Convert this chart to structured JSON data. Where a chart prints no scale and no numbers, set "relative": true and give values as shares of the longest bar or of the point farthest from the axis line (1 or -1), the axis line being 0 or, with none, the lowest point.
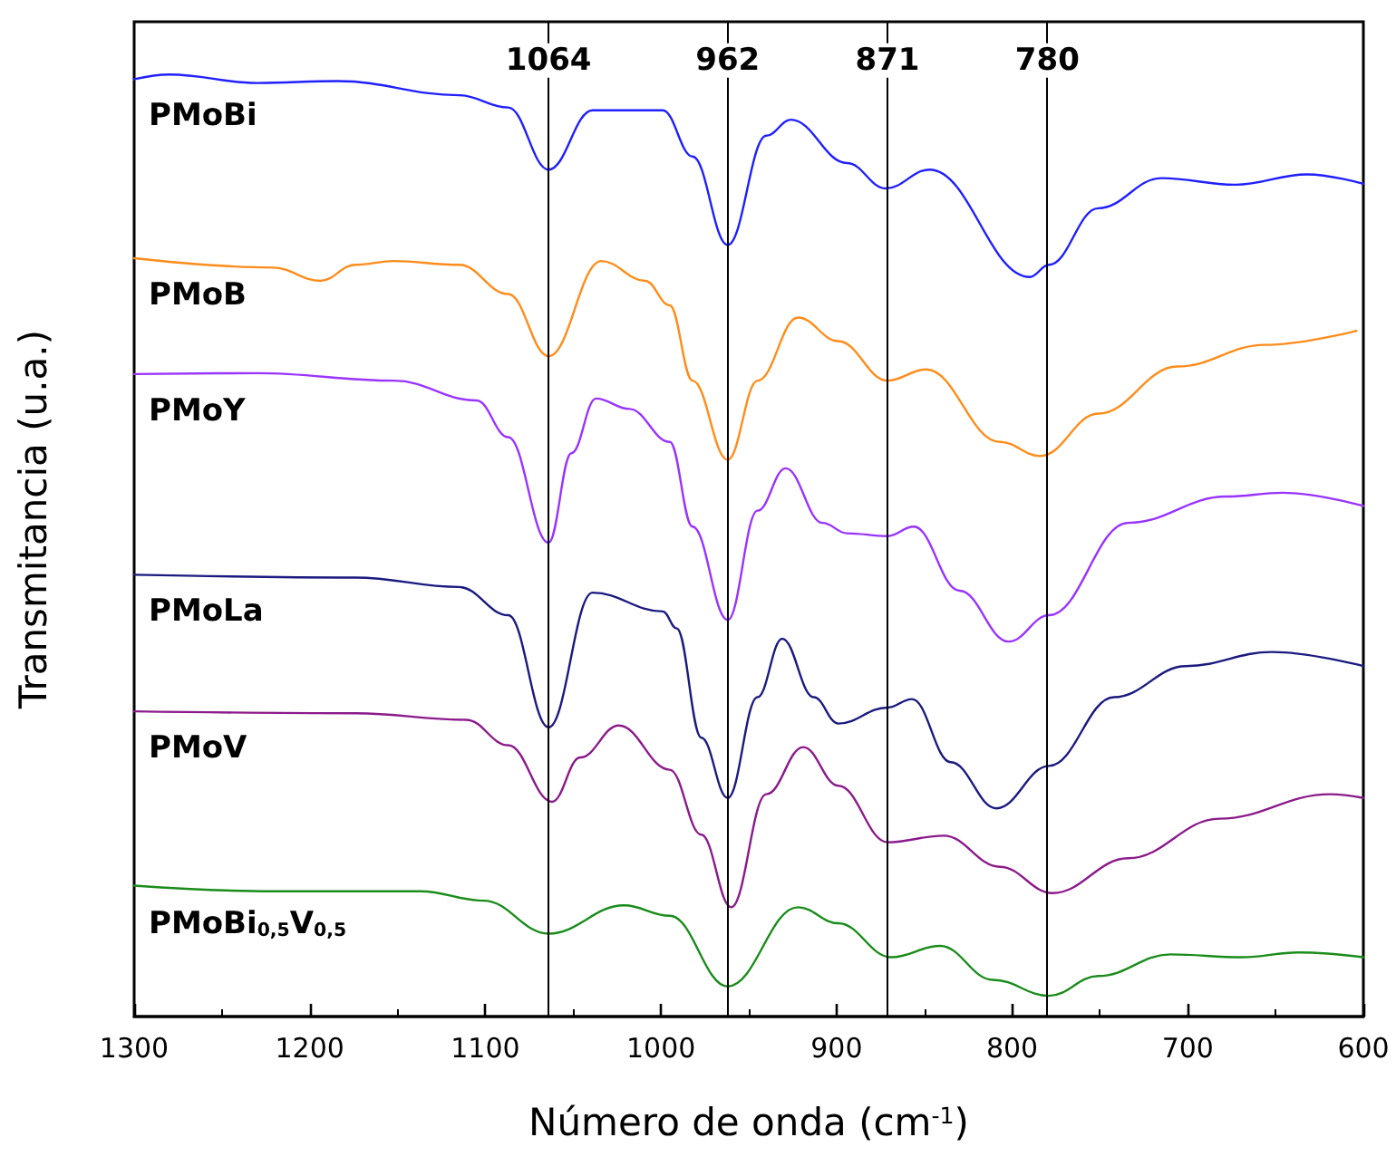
{
  "chart_data": {
    "type": "line",
    "relative": true,
    "xlabel": "Número de onda (cm$^{-1}$)",
    "ylabel": "Transmitancia (u.a.)",
    "xlim": [
      1300,
      600
    ],
    "xticks": [
      1300,
      1200,
      1100,
      1000,
      900,
      800,
      700,
      600
    ],
    "grid": false,
    "legend": false,
    "marker": "none",
    "line_style": "solid",
    "ref_lines": [
      {
        "axis": "x",
        "value": 1064,
        "label": "1064",
        "color": "#000000"
      },
      {
        "axis": "x",
        "value": 962,
        "label": "962",
        "color": "#000000"
      },
      {
        "axis": "x",
        "value": 871,
        "label": "871",
        "color": "#000000"
      },
      {
        "axis": "x",
        "value": 780,
        "label": "780",
        "color": "#000000"
      }
    ],
    "series": [
      {
        "name": "PMoBi",
        "color": "#1f1fff",
        "x": [
          1300,
          1280,
          1230,
          1184,
          1115,
          1087,
          1064,
          1039,
          999,
          982,
          962,
          940,
          926,
          894,
          872,
          847,
          790,
          779,
          751,
          715,
          673,
          632,
          600
        ],
        "values": [
          0.995,
          1.0,
          0.991,
          0.993,
          0.978,
          0.965,
          0.899,
          0.962,
          0.962,
          0.913,
          0.819,
          0.935,
          0.952,
          0.906,
          0.879,
          0.899,
          0.785,
          0.798,
          0.858,
          0.89,
          0.883,
          0.894,
          0.884
        ]
      },
      {
        "name": "PMoB",
        "color": "#ff8c1a",
        "x": [
          1300,
          1221,
          1194,
          1174,
          1152,
          1115,
          1087,
          1064,
          1034,
          1009,
          995,
          982,
          962,
          945,
          922,
          899,
          871,
          849,
          807,
          784,
          751,
          706,
          656,
          604
        ],
        "values": [
          0.805,
          0.795,
          0.781,
          0.798,
          0.802,
          0.798,
          0.767,
          0.701,
          0.802,
          0.781,
          0.755,
          0.675,
          0.591,
          0.675,
          0.742,
          0.717,
          0.675,
          0.687,
          0.61,
          0.595,
          0.64,
          0.69,
          0.713,
          0.728
        ]
      },
      {
        "name": "PMoY",
        "color": "#9933ff",
        "x": [
          1300,
          1230,
          1152,
          1105,
          1087,
          1064,
          1051,
          1037,
          1018,
          995,
          982,
          962,
          945,
          929,
          908,
          894,
          871,
          856,
          830,
          802,
          779,
          734,
          678,
          646,
          600
        ],
        "values": [
          0.682,
          0.683,
          0.675,
          0.654,
          0.615,
          0.503,
          0.598,
          0.656,
          0.645,
          0.61,
          0.52,
          0.421,
          0.537,
          0.582,
          0.524,
          0.513,
          0.51,
          0.52,
          0.452,
          0.398,
          0.426,
          0.524,
          0.552,
          0.556,
          0.542
        ]
      },
      {
        "name": "PMoLa",
        "color": "#1a1a80",
        "x": [
          1300,
          1174,
          1115,
          1087,
          1064,
          1039,
          999,
          991,
          977,
          962,
          945,
          931,
          913,
          899,
          871,
          857,
          835,
          809,
          779,
          742,
          701,
          652,
          600
        ],
        "values": [
          0.469,
          0.466,
          0.456,
          0.426,
          0.307,
          0.45,
          0.43,
          0.412,
          0.296,
          0.232,
          0.339,
          0.401,
          0.339,
          0.311,
          0.328,
          0.337,
          0.27,
          0.221,
          0.266,
          0.339,
          0.372,
          0.387,
          0.372
        ]
      },
      {
        "name": "PMoV",
        "color": "#8b1a8b",
        "x": [
          1300,
          1174,
          1111,
          1087,
          1062,
          1046,
          1024,
          995,
          977,
          960,
          940,
          919,
          899,
          871,
          839,
          807,
          777,
          734,
          682,
          619,
          600
        ],
        "values": [
          0.324,
          0.322,
          0.315,
          0.288,
          0.228,
          0.275,
          0.309,
          0.262,
          0.193,
          0.116,
          0.236,
          0.286,
          0.245,
          0.185,
          0.192,
          0.159,
          0.131,
          0.168,
          0.21,
          0.236,
          0.232
        ]
      },
      {
        "name": "PMoBi$_{0,5}$V$_{0,5}$",
        "color": "#1a8c1a",
        "x": [
          1300,
          1221,
          1137,
          1101,
          1064,
          1021,
          995,
          962,
          922,
          899,
          869,
          841,
          811,
          779,
          751,
          710,
          669,
          637,
          600
        ],
        "values": [
          0.139,
          0.133,
          0.133,
          0.123,
          0.088,
          0.118,
          0.107,
          0.032,
          0.116,
          0.099,
          0.063,
          0.075,
          0.039,
          0.022,
          0.043,
          0.066,
          0.063,
          0.068,
          0.063
        ]
      }
    ]
  }
}
